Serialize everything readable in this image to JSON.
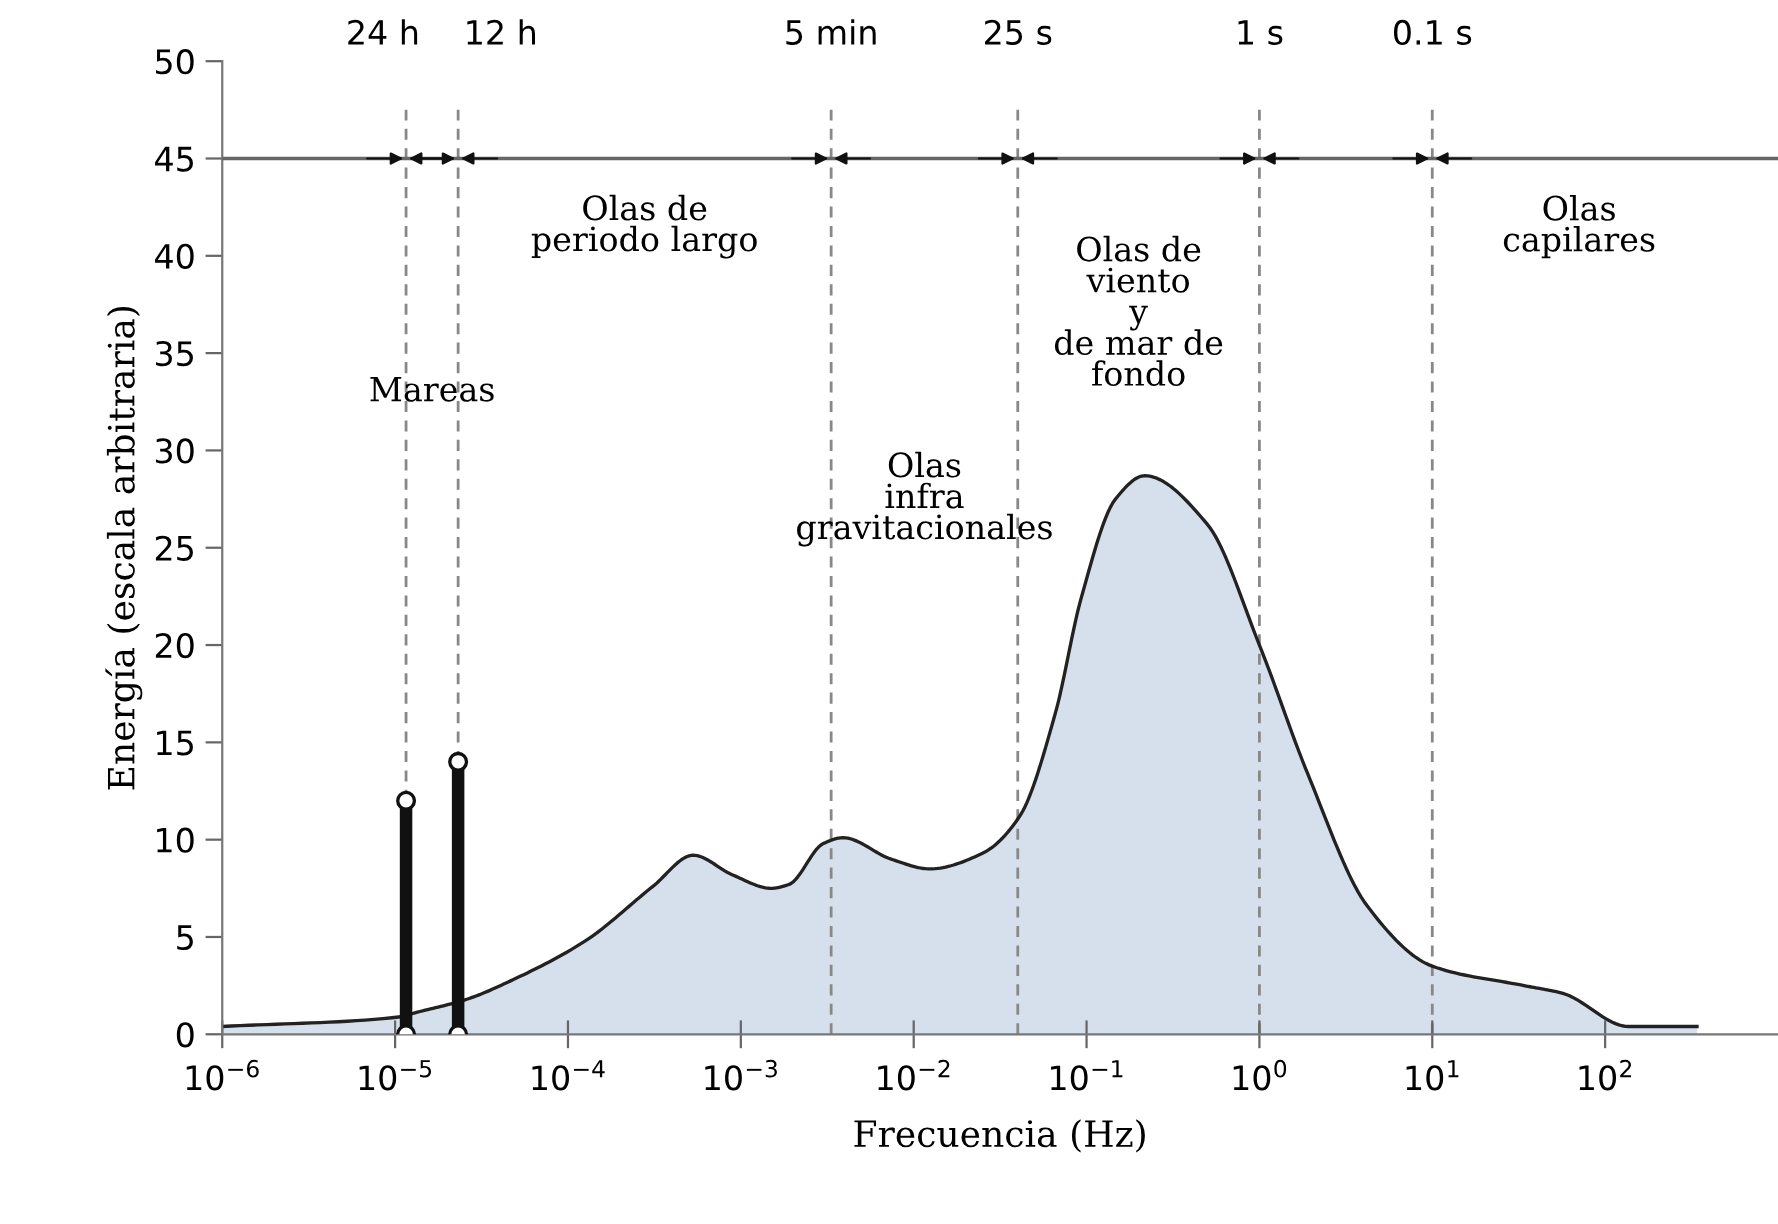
{
  "chart_data": {
    "type": "area",
    "xlabel": "Frecuencia (Hz)",
    "ylabel": "Energía (escala arbitraria)",
    "log": "x",
    "xlim": [
      1e-06,
      1000
    ],
    "ylim": [
      0,
      50
    ],
    "xticks": [
      {
        "value": 1e-06,
        "label": "10$^{−6}$"
      },
      {
        "value": 1e-05,
        "label": "10$^{−5}$"
      },
      {
        "value": 0.0001,
        "label": "10$^{−4}$"
      },
      {
        "value": 0.001,
        "label": "10$^{−3}$"
      },
      {
        "value": 0.01,
        "label": "10$^{−2}$"
      },
      {
        "value": 0.1,
        "label": "10$^{−1}$"
      },
      {
        "value": 1,
        "label": "10$^{0}$"
      },
      {
        "value": 10,
        "label": "10$^{1}$"
      },
      {
        "value": 100,
        "label": "10$^{2}$"
      }
    ],
    "yticks": [
      0,
      5,
      10,
      15,
      20,
      25,
      30,
      35,
      40,
      45,
      50
    ],
    "grid": false,
    "legend": false,
    "series": [
      {
        "color": "#d6e0ec",
        "x": [
          1e-06,
          1.08e-05,
          1.3e-05,
          2.6e-05,
          4.8e-05,
          0.000126,
          0.00031,
          0.00053,
          0.00089,
          0.0015,
          0.0019,
          0.003,
          0.0039,
          0.0074,
          0.0124,
          0.025,
          0.041,
          0.066,
          0.093,
          0.147,
          0.217,
          0.5,
          1.0,
          1.9,
          4.2,
          10,
          34,
          57,
          137,
          340
        ],
        "values": [
          0.4,
          0.9,
          1.1,
          1.8,
          2.8,
          4.8,
          7.6,
          9.2,
          8.2,
          7.5,
          7.7,
          9.8,
          10.1,
          9.0,
          8.5,
          9.3,
          11.2,
          16.5,
          22.4,
          27.5,
          28.7,
          26.2,
          20,
          13.4,
          6.6,
          3.5,
          2.5,
          2.1,
          0.4,
          0.4
        ]
      },
      {
        "type": "line",
        "color": "#111111",
        "marker": "circle",
        "x": [
          1.157e-05,
          1.157e-05
        ],
        "values": [
          0,
          12
        ]
      },
      {
        "type": "line",
        "color": "#111111",
        "marker": "circle",
        "x": [
          2.315e-05,
          2.315e-05
        ],
        "values": [
          0,
          14
        ]
      }
    ],
    "ref_lines": [
      {
        "axis": "y",
        "value": 45,
        "label": null,
        "color": "#666666",
        "line_style": "solid"
      },
      {
        "axis": "x",
        "value": 1.157e-05,
        "label": "24 h",
        "color": "#888888",
        "line_style": "dashed"
      },
      {
        "axis": "x",
        "value": 2.315e-05,
        "label": "12 h",
        "color": "#888888",
        "line_style": "dashed"
      },
      {
        "axis": "x",
        "value": 0.00333,
        "label": "5 min",
        "color": "#888888",
        "line_style": "dashed"
      },
      {
        "axis": "x",
        "value": 0.04,
        "label": "25 s",
        "color": "#888888",
        "line_style": "dashed"
      },
      {
        "axis": "x",
        "value": 1,
        "label": "1 s",
        "color": "#888888",
        "line_style": "dashed"
      },
      {
        "axis": "x",
        "value": 10,
        "label": "0.1 s",
        "color": "#888888",
        "line_style": "dashed"
      }
    ],
    "annotations": [
      "Mareas",
      "Olas de\nperiodo largo",
      "Olas\ninfra\ngravitacionales",
      "Olas de\nviento\ny\nde mar de\nfondo",
      "Olas\ncapilares"
    ]
  }
}
